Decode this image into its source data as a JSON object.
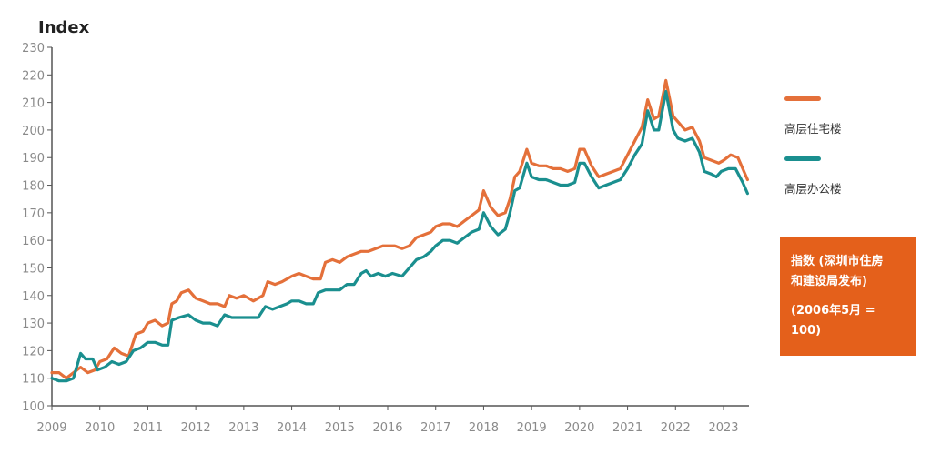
{
  "chart_data": {
    "type": "line",
    "ylabel": "Index",
    "ylim": [
      100,
      230
    ],
    "yticks": [
      100,
      110,
      120,
      130,
      140,
      150,
      160,
      170,
      180,
      190,
      200,
      210,
      220,
      230
    ],
    "xlim": [
      2009,
      2023.55
    ],
    "xticks": [
      "2009",
      "2010",
      "2011",
      "2012",
      "2013",
      "2014",
      "2015",
      "2016",
      "2017",
      "2018",
      "2019",
      "2020",
      "2021",
      "2022",
      "2023"
    ],
    "grid": false,
    "legend_position": "right",
    "series": [
      {
        "name": "高层住宅楼",
        "color": "#e4703a",
        "points": [
          [
            2009.0,
            112
          ],
          [
            2009.15,
            112
          ],
          [
            2009.3,
            110
          ],
          [
            2009.45,
            112
          ],
          [
            2009.6,
            114
          ],
          [
            2009.75,
            112
          ],
          [
            2009.9,
            113
          ],
          [
            2010.0,
            116
          ],
          [
            2010.15,
            117
          ],
          [
            2010.3,
            121
          ],
          [
            2010.45,
            119
          ],
          [
            2010.6,
            118
          ],
          [
            2010.75,
            126
          ],
          [
            2010.9,
            127
          ],
          [
            2011.0,
            130
          ],
          [
            2011.15,
            131
          ],
          [
            2011.3,
            129
          ],
          [
            2011.42,
            130
          ],
          [
            2011.5,
            137
          ],
          [
            2011.6,
            138
          ],
          [
            2011.7,
            141
          ],
          [
            2011.85,
            142
          ],
          [
            2012.0,
            139
          ],
          [
            2012.15,
            138
          ],
          [
            2012.3,
            137
          ],
          [
            2012.45,
            137
          ],
          [
            2012.6,
            136
          ],
          [
            2012.7,
            140
          ],
          [
            2012.85,
            139
          ],
          [
            2013.0,
            140
          ],
          [
            2013.1,
            139
          ],
          [
            2013.2,
            138
          ],
          [
            2013.3,
            139
          ],
          [
            2013.4,
            140
          ],
          [
            2013.5,
            145
          ],
          [
            2013.65,
            144
          ],
          [
            2013.8,
            145
          ],
          [
            2014.0,
            147
          ],
          [
            2014.15,
            148
          ],
          [
            2014.3,
            147
          ],
          [
            2014.45,
            146
          ],
          [
            2014.6,
            146
          ],
          [
            2014.7,
            152
          ],
          [
            2014.85,
            153
          ],
          [
            2015.0,
            152
          ],
          [
            2015.15,
            154
          ],
          [
            2015.3,
            155
          ],
          [
            2015.45,
            156
          ],
          [
            2015.6,
            156
          ],
          [
            2015.75,
            157
          ],
          [
            2015.9,
            158
          ],
          [
            2016.0,
            158
          ],
          [
            2016.15,
            158
          ],
          [
            2016.3,
            157
          ],
          [
            2016.45,
            158
          ],
          [
            2016.6,
            161
          ],
          [
            2016.75,
            162
          ],
          [
            2016.9,
            163
          ],
          [
            2017.0,
            165
          ],
          [
            2017.15,
            166
          ],
          [
            2017.3,
            166
          ],
          [
            2017.45,
            165
          ],
          [
            2017.6,
            167
          ],
          [
            2017.75,
            169
          ],
          [
            2017.9,
            171
          ],
          [
            2018.0,
            178
          ],
          [
            2018.15,
            172
          ],
          [
            2018.3,
            169
          ],
          [
            2018.45,
            170
          ],
          [
            2018.55,
            175
          ],
          [
            2018.65,
            183
          ],
          [
            2018.75,
            185
          ],
          [
            2018.9,
            193
          ],
          [
            2019.0,
            188
          ],
          [
            2019.15,
            187
          ],
          [
            2019.3,
            187
          ],
          [
            2019.45,
            186
          ],
          [
            2019.6,
            186
          ],
          [
            2019.75,
            185
          ],
          [
            2019.9,
            186
          ],
          [
            2020.0,
            193
          ],
          [
            2020.1,
            193
          ],
          [
            2020.25,
            187
          ],
          [
            2020.4,
            183
          ],
          [
            2020.55,
            184
          ],
          [
            2020.7,
            185
          ],
          [
            2020.85,
            186
          ],
          [
            2021.0,
            191
          ],
          [
            2021.15,
            196
          ],
          [
            2021.3,
            201
          ],
          [
            2021.42,
            211
          ],
          [
            2021.55,
            204
          ],
          [
            2021.65,
            205
          ],
          [
            2021.8,
            218
          ],
          [
            2021.95,
            205
          ],
          [
            2022.05,
            203
          ],
          [
            2022.2,
            200
          ],
          [
            2022.35,
            201
          ],
          [
            2022.5,
            196
          ],
          [
            2022.6,
            190
          ],
          [
            2022.75,
            189
          ],
          [
            2022.9,
            188
          ],
          [
            2023.0,
            189
          ],
          [
            2023.15,
            191
          ],
          [
            2023.3,
            190
          ],
          [
            2023.5,
            182
          ]
        ]
      },
      {
        "name": "高层办公楼",
        "color": "#1a8f8f",
        "points": [
          [
            2009.0,
            110
          ],
          [
            2009.15,
            109
          ],
          [
            2009.3,
            109
          ],
          [
            2009.45,
            110
          ],
          [
            2009.6,
            119
          ],
          [
            2009.7,
            117
          ],
          [
            2009.85,
            117
          ],
          [
            2009.95,
            113
          ],
          [
            2010.1,
            114
          ],
          [
            2010.25,
            116
          ],
          [
            2010.4,
            115
          ],
          [
            2010.55,
            116
          ],
          [
            2010.7,
            120
          ],
          [
            2010.85,
            121
          ],
          [
            2011.0,
            123
          ],
          [
            2011.15,
            123
          ],
          [
            2011.3,
            122
          ],
          [
            2011.42,
            122
          ],
          [
            2011.5,
            131
          ],
          [
            2011.65,
            132
          ],
          [
            2011.85,
            133
          ],
          [
            2012.0,
            131
          ],
          [
            2012.15,
            130
          ],
          [
            2012.3,
            130
          ],
          [
            2012.45,
            129
          ],
          [
            2012.6,
            133
          ],
          [
            2012.75,
            132
          ],
          [
            2012.9,
            132
          ],
          [
            2013.0,
            132
          ],
          [
            2013.15,
            132
          ],
          [
            2013.3,
            132
          ],
          [
            2013.45,
            136
          ],
          [
            2013.6,
            135
          ],
          [
            2013.75,
            136
          ],
          [
            2013.9,
            137
          ],
          [
            2014.0,
            138
          ],
          [
            2014.15,
            138
          ],
          [
            2014.3,
            137
          ],
          [
            2014.45,
            137
          ],
          [
            2014.55,
            141
          ],
          [
            2014.7,
            142
          ],
          [
            2014.9,
            142
          ],
          [
            2015.0,
            142
          ],
          [
            2015.15,
            144
          ],
          [
            2015.3,
            144
          ],
          [
            2015.45,
            148
          ],
          [
            2015.55,
            149
          ],
          [
            2015.65,
            147
          ],
          [
            2015.8,
            148
          ],
          [
            2015.95,
            147
          ],
          [
            2016.1,
            148
          ],
          [
            2016.3,
            147
          ],
          [
            2016.45,
            150
          ],
          [
            2016.6,
            153
          ],
          [
            2016.75,
            154
          ],
          [
            2016.9,
            156
          ],
          [
            2017.0,
            158
          ],
          [
            2017.15,
            160
          ],
          [
            2017.3,
            160
          ],
          [
            2017.45,
            159
          ],
          [
            2017.6,
            161
          ],
          [
            2017.75,
            163
          ],
          [
            2017.9,
            164
          ],
          [
            2018.0,
            170
          ],
          [
            2018.15,
            165
          ],
          [
            2018.3,
            162
          ],
          [
            2018.45,
            164
          ],
          [
            2018.55,
            170
          ],
          [
            2018.65,
            178
          ],
          [
            2018.75,
            179
          ],
          [
            2018.9,
            188
          ],
          [
            2019.0,
            183
          ],
          [
            2019.15,
            182
          ],
          [
            2019.3,
            182
          ],
          [
            2019.45,
            181
          ],
          [
            2019.6,
            180
          ],
          [
            2019.75,
            180
          ],
          [
            2019.9,
            181
          ],
          [
            2020.0,
            188
          ],
          [
            2020.1,
            188
          ],
          [
            2020.25,
            183
          ],
          [
            2020.4,
            179
          ],
          [
            2020.55,
            180
          ],
          [
            2020.7,
            181
          ],
          [
            2020.85,
            182
          ],
          [
            2021.0,
            186
          ],
          [
            2021.15,
            191
          ],
          [
            2021.3,
            195
          ],
          [
            2021.42,
            207
          ],
          [
            2021.55,
            200
          ],
          [
            2021.65,
            200
          ],
          [
            2021.8,
            214
          ],
          [
            2021.95,
            200
          ],
          [
            2022.05,
            197
          ],
          [
            2022.2,
            196
          ],
          [
            2022.35,
            197
          ],
          [
            2022.5,
            192
          ],
          [
            2022.6,
            185
          ],
          [
            2022.75,
            184
          ],
          [
            2022.85,
            183
          ],
          [
            2022.95,
            185
          ],
          [
            2023.1,
            186
          ],
          [
            2023.25,
            186
          ],
          [
            2023.4,
            181
          ],
          [
            2023.5,
            177
          ]
        ]
      }
    ]
  },
  "note": {
    "line1": "指数 (深圳市住房",
    "line2": "和建设局发布)",
    "line3": "(2006年5月 =",
    "line4": "100)"
  }
}
